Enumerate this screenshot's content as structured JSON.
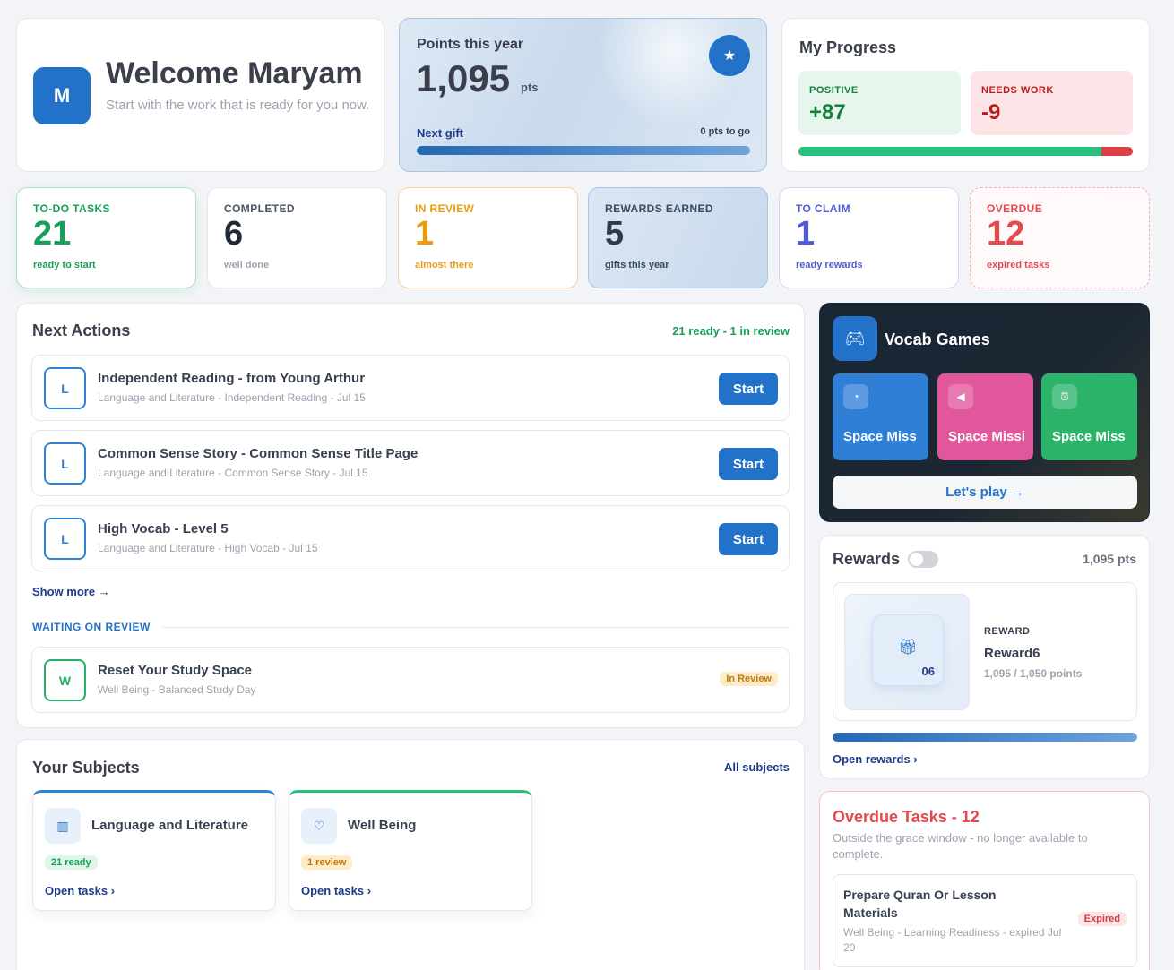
{
  "welcome": {
    "avatar_initial": "M",
    "title": "Welcome Maryam",
    "subtitle": "Start with the work that is ready for you now."
  },
  "points": {
    "label": "Points this year",
    "value": "1,095",
    "unit": "pts",
    "next_gift_label": "Next gift",
    "to_go": "0 pts to go",
    "progress_fraction": 1.0
  },
  "progress": {
    "title": "My Progress",
    "positive_label": "POSITIVE",
    "positive_value": "+87",
    "negative_label": "NEEDS WORK",
    "negative_value": "-9",
    "positive_share": 0.906
  },
  "stats": [
    {
      "label": "TO-DO TASKS",
      "value": "21",
      "sub": "ready to start",
      "color": "#16a05a"
    },
    {
      "label": "COMPLETED",
      "value": "6",
      "sub": "well done",
      "color": "#1f2937"
    },
    {
      "label": "IN REVIEW",
      "value": "1",
      "sub": "almost there",
      "color": "#e89b12"
    },
    {
      "label": "REWARDS EARNED",
      "value": "5",
      "sub": "gifts this year",
      "color": "#2f3b4c"
    },
    {
      "label": "TO CLAIM",
      "value": "1",
      "sub": "ready rewards",
      "color": "#4f5bd5"
    },
    {
      "label": "OVERDUE",
      "value": "12",
      "sub": "expired tasks",
      "color": "#e34a50"
    }
  ],
  "next_actions": {
    "title": "Next Actions",
    "summary": "21 ready - 1 in review",
    "items": [
      {
        "letter": "L",
        "title": "Independent Reading - from Young Arthur",
        "meta": "Language and Literature - Independent Reading - Jul 15",
        "button": "Start"
      },
      {
        "letter": "L",
        "title": "Common Sense Story - Common Sense Title Page",
        "meta": "Language and Literature - Common Sense Story - Jul 15",
        "button": "Start"
      },
      {
        "letter": "L",
        "title": "High Vocab - Level 5",
        "meta": "Language and Literature - High Vocab - Jul 15",
        "button": "Start"
      }
    ],
    "show_more": "Show more",
    "waiting_label": "WAITING ON REVIEW",
    "review_item": {
      "letter": "W",
      "title": "Reset Your Study Space",
      "meta": "Well Being - Balanced Study Day",
      "badge": "In Review"
    }
  },
  "subjects": {
    "title": "Your Subjects",
    "all_link": "All subjects",
    "items": [
      {
        "name": "Language and Literature",
        "pill": "21 ready",
        "link": "Open tasks",
        "icon": "books-icon",
        "accent": "#2c82d4"
      },
      {
        "name": "Well Being",
        "pill": "1 review",
        "link": "Open tasks",
        "icon": "heart-icon",
        "accent": "#27c07c"
      }
    ]
  },
  "vocab": {
    "title": "Vocab Games",
    "games": [
      {
        "name": "Space Miss",
        "icon": "ear-icon",
        "color": "#2f7fd6"
      },
      {
        "name": "Space Missi",
        "icon": "speaker-icon",
        "color": "#e0579c"
      },
      {
        "name": "Space Miss",
        "icon": "alarm-icon",
        "color": "#2bb36a"
      }
    ],
    "play": "Let's play"
  },
  "rewards": {
    "title": "Rewards",
    "points": "1,095 pts",
    "kicker": "REWARD",
    "name": "Reward6",
    "tile_number": "06",
    "progress_text": "1,095 / 1,050 points",
    "progress_fraction": 1.0,
    "open_link": "Open rewards"
  },
  "overdue": {
    "title": "Overdue Tasks - 12",
    "subtitle": "Outside the grace window - no longer available to complete.",
    "item": {
      "title": "Prepare Quran Or Lesson Materials",
      "meta": "Well Being - Learning Readiness - expired Jul 20",
      "badge": "Expired"
    }
  }
}
